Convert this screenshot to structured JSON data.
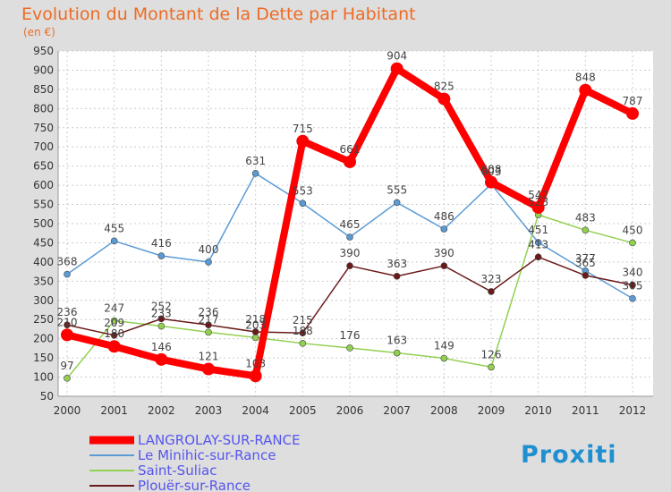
{
  "chart_data": {
    "type": "line",
    "title": "Evolution du Montant de la Dette par Habitant",
    "subtitle": "(en €)",
    "x": [
      "2000",
      "2001",
      "2002",
      "2003",
      "2004",
      "2005",
      "2006",
      "2007",
      "2008",
      "2009",
      "2010",
      "2011",
      "2012"
    ],
    "ylim": [
      50,
      950
    ],
    "yticks": [
      50,
      100,
      150,
      200,
      250,
      300,
      350,
      400,
      450,
      500,
      550,
      600,
      650,
      700,
      750,
      800,
      850,
      900,
      950
    ],
    "grid": true,
    "legend_position": "bottom-left",
    "series": [
      {
        "name": "LANGROLAY-SUR-RANCE",
        "color": "#ff0000",
        "values": [
          210,
          180,
          146,
          121,
          103,
          715,
          661,
          904,
          825,
          608,
          542,
          848,
          787
        ]
      },
      {
        "name": "Le Minihic-sur-Rance",
        "color": "#5b9bd5",
        "values": [
          368,
          455,
          416,
          400,
          631,
          553,
          465,
          555,
          486,
          603,
          451,
          377,
          305
        ]
      },
      {
        "name": "Saint-Suliac",
        "color": "#92d050",
        "values": [
          97,
          247,
          233,
          217,
          203,
          188,
          176,
          163,
          149,
          126,
          523,
          483,
          450
        ]
      },
      {
        "name": "Plouër-sur-Rance",
        "color": "#6b1a1a",
        "values": [
          236,
          209,
          252,
          236,
          218,
          215,
          390,
          363,
          390,
          323,
          413,
          365,
          340
        ]
      }
    ]
  },
  "brand": {
    "text": "Proxiti"
  }
}
